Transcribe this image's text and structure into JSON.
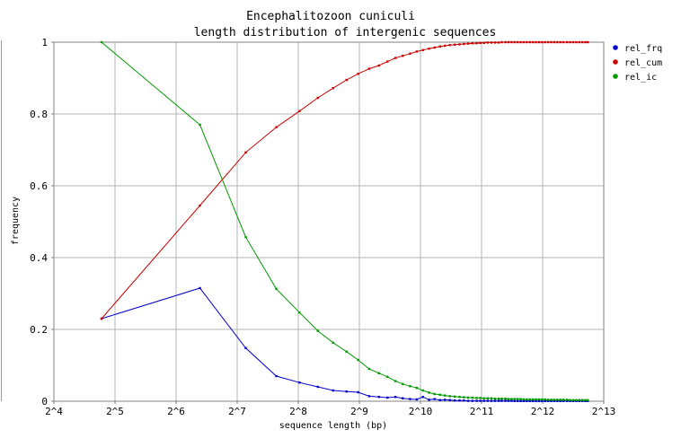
{
  "chart_data": {
    "type": "line",
    "title": "Encephalitozoon cuniculi",
    "subtitle": "length distribution of intergenic sequences",
    "xlabel": "sequence length (bp)",
    "ylabel": "frequency",
    "x_scale": "log2",
    "xlim_log2": [
      4,
      13
    ],
    "ylim": [
      0,
      1
    ],
    "grid": true,
    "legend_position": "right",
    "x_tick_labels": [
      "2^4",
      "2^5",
      "2^6",
      "2^7",
      "2^8",
      "2^9",
      "2^10",
      "2^11",
      "2^12",
      "2^13"
    ],
    "y_tick_labels": [
      "0",
      "0.2",
      "0.4",
      "0.6",
      "0.8",
      "1"
    ],
    "series": [
      {
        "name": "rel_frq",
        "color": "#0000cc",
        "points": [
          [
            4.78,
            0.23
          ],
          [
            6.39,
            0.315
          ],
          [
            7.14,
            0.148
          ],
          [
            7.64,
            0.07
          ],
          [
            8.02,
            0.052
          ],
          [
            8.32,
            0.04
          ],
          [
            8.57,
            0.03
          ],
          [
            8.79,
            0.027
          ],
          [
            8.98,
            0.025
          ],
          [
            9.16,
            0.014
          ],
          [
            9.32,
            0.012
          ],
          [
            9.46,
            0.01
          ],
          [
            9.59,
            0.012
          ],
          [
            9.71,
            0.008
          ],
          [
            9.83,
            0.006
          ],
          [
            9.94,
            0.005
          ],
          [
            10.04,
            0.012
          ],
          [
            10.14,
            0.004
          ],
          [
            10.23,
            0.006
          ],
          [
            10.32,
            0.003
          ],
          [
            10.4,
            0.004
          ],
          [
            10.48,
            0.003
          ],
          [
            10.56,
            0.002
          ],
          [
            10.64,
            0.002
          ],
          [
            10.71,
            0.002
          ],
          [
            10.78,
            0.001
          ],
          [
            10.85,
            0.001
          ],
          [
            10.92,
            0.001
          ],
          [
            10.98,
            0.001
          ],
          [
            11.04,
            0.001
          ],
          [
            11.1,
            0.001
          ],
          [
            11.16,
            0.001
          ],
          [
            11.22,
            0.001
          ],
          [
            11.28,
            0.001
          ],
          [
            11.33,
            0.001
          ],
          [
            11.39,
            0.001
          ],
          [
            11.44,
            0.001
          ],
          [
            11.49,
            0.001
          ],
          [
            11.54,
            0.0005
          ],
          [
            11.59,
            0.0005
          ],
          [
            11.64,
            0.0005
          ],
          [
            11.69,
            0.0005
          ],
          [
            11.74,
            0.0005
          ],
          [
            11.79,
            0.0005
          ],
          [
            11.84,
            0.0005
          ],
          [
            11.89,
            0.0005
          ],
          [
            11.94,
            0.0005
          ],
          [
            11.99,
            0.0005
          ],
          [
            12.04,
            0.0005
          ],
          [
            12.09,
            0.0005
          ],
          [
            12.14,
            0.0005
          ],
          [
            12.19,
            0.0005
          ],
          [
            12.24,
            0.0005
          ],
          [
            12.29,
            0.0005
          ],
          [
            12.34,
            0.0005
          ],
          [
            12.4,
            0.0005
          ],
          [
            12.45,
            0.0005
          ],
          [
            12.5,
            0.0005
          ],
          [
            12.55,
            0.0005
          ],
          [
            12.6,
            0.0005
          ],
          [
            12.65,
            0.0005
          ],
          [
            12.7,
            0.0005
          ],
          [
            12.74,
            0.0005
          ]
        ]
      },
      {
        "name": "rel_cum",
        "color": "#cc0000",
        "points": [
          [
            4.78,
            0.23
          ],
          [
            6.39,
            0.545
          ],
          [
            7.14,
            0.693
          ],
          [
            7.64,
            0.763
          ],
          [
            8.02,
            0.808
          ],
          [
            8.32,
            0.845
          ],
          [
            8.57,
            0.872
          ],
          [
            8.79,
            0.895
          ],
          [
            8.98,
            0.912
          ],
          [
            9.16,
            0.926
          ],
          [
            9.32,
            0.935
          ],
          [
            9.46,
            0.946
          ],
          [
            9.59,
            0.956
          ],
          [
            9.71,
            0.962
          ],
          [
            9.83,
            0.968
          ],
          [
            9.94,
            0.974
          ],
          [
            10.04,
            0.978
          ],
          [
            10.14,
            0.982
          ],
          [
            10.23,
            0.985
          ],
          [
            10.32,
            0.988
          ],
          [
            10.4,
            0.99
          ],
          [
            10.48,
            0.992
          ],
          [
            10.56,
            0.993
          ],
          [
            10.64,
            0.994
          ],
          [
            10.71,
            0.995
          ],
          [
            10.78,
            0.996
          ],
          [
            10.85,
            0.997
          ],
          [
            10.92,
            0.997
          ],
          [
            10.98,
            0.998
          ],
          [
            11.04,
            0.998
          ],
          [
            11.1,
            0.999
          ],
          [
            11.16,
            0.999
          ],
          [
            11.22,
            0.999
          ],
          [
            11.28,
            0.999
          ],
          [
            11.33,
            1
          ],
          [
            11.39,
            1
          ],
          [
            11.44,
            1
          ],
          [
            11.49,
            1
          ],
          [
            11.54,
            1
          ],
          [
            11.59,
            1
          ],
          [
            11.64,
            1
          ],
          [
            11.69,
            1
          ],
          [
            11.74,
            1
          ],
          [
            11.79,
            1
          ],
          [
            11.84,
            1
          ],
          [
            11.89,
            1
          ],
          [
            11.94,
            1
          ],
          [
            11.99,
            1
          ],
          [
            12.04,
            1
          ],
          [
            12.09,
            1
          ],
          [
            12.14,
            1
          ],
          [
            12.19,
            1
          ],
          [
            12.24,
            1
          ],
          [
            12.29,
            1
          ],
          [
            12.34,
            1
          ],
          [
            12.4,
            1
          ],
          [
            12.45,
            1
          ],
          [
            12.5,
            1
          ],
          [
            12.55,
            1
          ],
          [
            12.6,
            1
          ],
          [
            12.65,
            1
          ],
          [
            12.7,
            1
          ],
          [
            12.74,
            1
          ]
        ]
      },
      {
        "name": "rel_ic",
        "color": "#009900",
        "points": [
          [
            4.78,
            1
          ],
          [
            6.39,
            0.77
          ],
          [
            7.14,
            0.457
          ],
          [
            7.64,
            0.313
          ],
          [
            8.02,
            0.247
          ],
          [
            8.32,
            0.196
          ],
          [
            8.57,
            0.163
          ],
          [
            8.79,
            0.138
          ],
          [
            8.98,
            0.115
          ],
          [
            9.16,
            0.09
          ],
          [
            9.32,
            0.078
          ],
          [
            9.46,
            0.068
          ],
          [
            9.59,
            0.056
          ],
          [
            9.71,
            0.048
          ],
          [
            9.83,
            0.042
          ],
          [
            9.94,
            0.037
          ],
          [
            10.04,
            0.03
          ],
          [
            10.14,
            0.024
          ],
          [
            10.23,
            0.02
          ],
          [
            10.32,
            0.018
          ],
          [
            10.4,
            0.016
          ],
          [
            10.48,
            0.014
          ],
          [
            10.56,
            0.013
          ],
          [
            10.64,
            0.012
          ],
          [
            10.71,
            0.011
          ],
          [
            10.78,
            0.01
          ],
          [
            10.85,
            0.01
          ],
          [
            10.92,
            0.009
          ],
          [
            10.98,
            0.009
          ],
          [
            11.04,
            0.008
          ],
          [
            11.1,
            0.008
          ],
          [
            11.16,
            0.008
          ],
          [
            11.22,
            0.007
          ],
          [
            11.28,
            0.007
          ],
          [
            11.33,
            0.007
          ],
          [
            11.39,
            0.007
          ],
          [
            11.44,
            0.006
          ],
          [
            11.49,
            0.006
          ],
          [
            11.54,
            0.006
          ],
          [
            11.59,
            0.006
          ],
          [
            11.64,
            0.006
          ],
          [
            11.69,
            0.005
          ],
          [
            11.74,
            0.005
          ],
          [
            11.79,
            0.005
          ],
          [
            11.84,
            0.005
          ],
          [
            11.89,
            0.005
          ],
          [
            11.94,
            0.005
          ],
          [
            11.99,
            0.005
          ],
          [
            12.04,
            0.005
          ],
          [
            12.09,
            0.004
          ],
          [
            12.14,
            0.004
          ],
          [
            12.19,
            0.004
          ],
          [
            12.24,
            0.004
          ],
          [
            12.29,
            0.004
          ],
          [
            12.34,
            0.004
          ],
          [
            12.4,
            0.004
          ],
          [
            12.45,
            0.003
          ],
          [
            12.5,
            0.003
          ],
          [
            12.55,
            0.003
          ],
          [
            12.6,
            0.003
          ],
          [
            12.65,
            0.003
          ],
          [
            12.7,
            0.003
          ],
          [
            12.74,
            0.003
          ]
        ]
      }
    ]
  }
}
